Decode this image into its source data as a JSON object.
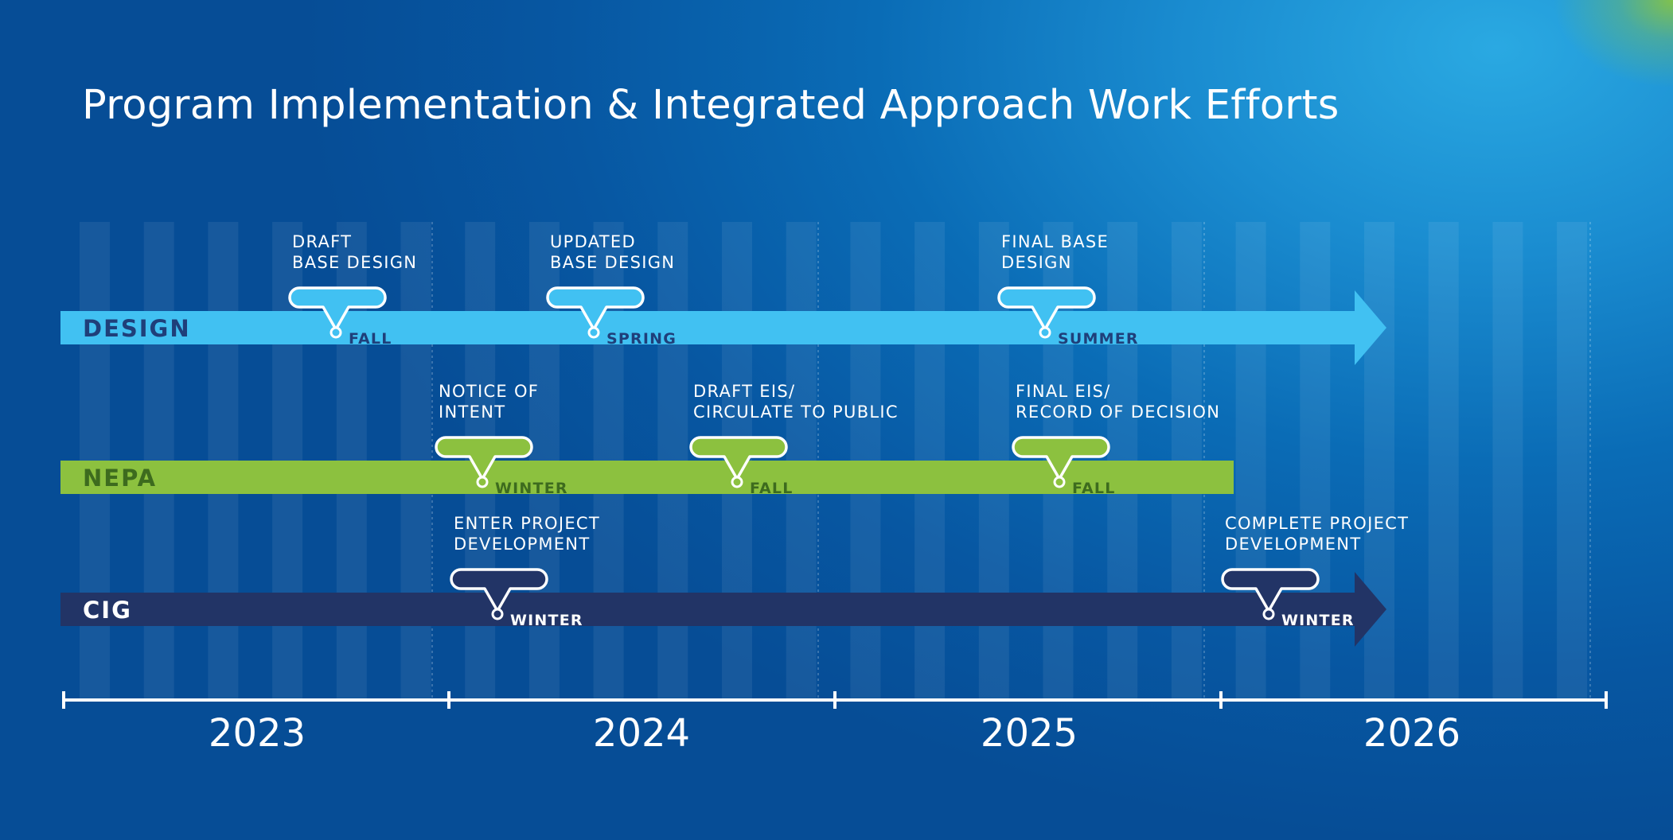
{
  "title": "Program Implementation & Integrated Approach Work Efforts",
  "years": [
    "2023",
    "2024",
    "2025",
    "2026"
  ],
  "colors": {
    "design": "#41c1f2",
    "nepa": "#8cc13f",
    "cig": "#223466",
    "design_label": "#1f3f7a",
    "nepa_label": "#3d6b1e",
    "cig_label": "#ffffff"
  },
  "tracks": [
    {
      "key": "design",
      "label": "DESIGN",
      "milestones": [
        {
          "label": [
            "DRAFT",
            "BASE DESIGN"
          ],
          "season": "FALL"
        },
        {
          "label": [
            "UPDATED",
            "BASE DESIGN"
          ],
          "season": "SPRING"
        },
        {
          "label": [
            "FINAL BASE",
            "DESIGN"
          ],
          "season": "SUMMER"
        }
      ]
    },
    {
      "key": "nepa",
      "label": "NEPA",
      "milestones": [
        {
          "label": [
            "NOTICE OF",
            "INTENT"
          ],
          "season": "WINTER"
        },
        {
          "label": [
            "DRAFT EIS/",
            "CIRCULATE TO PUBLIC"
          ],
          "season": "FALL"
        },
        {
          "label": [
            "FINAL EIS/",
            "RECORD OF DECISION"
          ],
          "season": "FALL"
        }
      ]
    },
    {
      "key": "cig",
      "label": "CIG",
      "milestones": [
        {
          "label": [
            "ENTER PROJECT",
            "DEVELOPMENT"
          ],
          "season": "WINTER"
        },
        {
          "label": [
            "COMPLETE PROJECT",
            "DEVELOPMENT"
          ],
          "season": "WINTER"
        }
      ]
    }
  ]
}
